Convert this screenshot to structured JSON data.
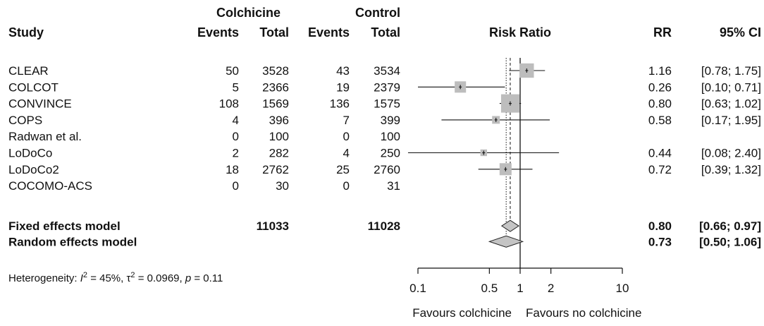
{
  "headers": {
    "group1": "Colchicine",
    "group2": "Control",
    "study": "Study",
    "events1": "Events",
    "total1": "Total",
    "events2": "Events",
    "total2": "Total",
    "plot": "Risk Ratio",
    "rr": "RR",
    "ci": "95% CI"
  },
  "chart_data": {
    "type": "forest",
    "scale": "log",
    "xlim": [
      0.1,
      10
    ],
    "ticks": [
      {
        "value": 0.1,
        "label": "0.1"
      },
      {
        "value": 0.5,
        "label": "0.5"
      },
      {
        "value": 1,
        "label": "1"
      },
      {
        "value": 2,
        "label": "2"
      },
      {
        "value": 10,
        "label": "10"
      }
    ],
    "xlabel_left": "Favours colchicine",
    "xlabel_right": "Favours no colchicine",
    "reference_line": 1,
    "fixed_line": 0.8,
    "random_line": 0.73,
    "studies": [
      {
        "name": "CLEAR",
        "e1": "50",
        "t1": "3528",
        "e2": "43",
        "t2": "3534",
        "rr": 1.16,
        "lo": 0.78,
        "hi": 1.75,
        "rr_text": "1.16",
        "ci_text": "[0.78; 1.75]",
        "weight": 0.55
      },
      {
        "name": "COLCOT",
        "e1": "5",
        "t1": "2366",
        "e2": "19",
        "t2": "2379",
        "rr": 0.26,
        "lo": 0.1,
        "hi": 0.71,
        "rr_text": "0.26",
        "ci_text": "[0.10; 0.71]",
        "weight": 0.3
      },
      {
        "name": "CONVINCE",
        "e1": "108",
        "t1": "1569",
        "e2": "136",
        "t2": "1575",
        "rr": 0.8,
        "lo": 0.63,
        "hi": 1.02,
        "rr_text": "0.80",
        "ci_text": "[0.63; 1.02]",
        "weight": 1.0
      },
      {
        "name": "COPS",
        "e1": "4",
        "t1": "396",
        "e2": "7",
        "t2": "399",
        "rr": 0.58,
        "lo": 0.17,
        "hi": 1.95,
        "rr_text": "0.58",
        "ci_text": "[0.17; 1.95]",
        "weight": 0.1
      },
      {
        "name": "Radwan et al.",
        "e1": "0",
        "t1": "100",
        "e2": "0",
        "t2": "100",
        "rr": null,
        "lo": null,
        "hi": null,
        "rr_text": "",
        "ci_text": "",
        "weight": 0
      },
      {
        "name": "LoDoCo",
        "e1": "2",
        "t1": "282",
        "e2": "4",
        "t2": "250",
        "rr": 0.44,
        "lo": 0.08,
        "hi": 2.4,
        "rr_text": "0.44",
        "ci_text": "[0.08; 2.40]",
        "weight": 0.06
      },
      {
        "name": "LoDoCo2",
        "e1": "18",
        "t1": "2762",
        "e2": "25",
        "t2": "2760",
        "rr": 0.72,
        "lo": 0.39,
        "hi": 1.32,
        "rr_text": "0.72",
        "ci_text": "[0.39; 1.32]",
        "weight": 0.35
      },
      {
        "name": "COCOMO-ACS",
        "e1": "0",
        "t1": "30",
        "e2": "0",
        "t2": "31",
        "rr": null,
        "lo": null,
        "hi": null,
        "rr_text": "",
        "ci_text": "",
        "weight": 0
      }
    ],
    "pooled": [
      {
        "name": "Fixed effects model",
        "t1": "11033",
        "t2": "11028",
        "rr": 0.8,
        "lo": 0.66,
        "hi": 0.97,
        "rr_text": "0.80",
        "ci_text": "[0.66; 0.97]"
      },
      {
        "name": "Random effects model",
        "t1": "",
        "t2": "",
        "rr": 0.73,
        "lo": 0.5,
        "hi": 1.06,
        "rr_text": "0.73",
        "ci_text": "[0.50; 1.06]"
      }
    ],
    "heterogeneity": {
      "prefix": "Heterogeneity: ",
      "i2_symbol": "I",
      "i2_value": " = 45%, ",
      "tau2_symbol": "τ",
      "tau2_value": " = 0.0969, ",
      "p_symbol": "p",
      "p_value": " = 0.11"
    }
  }
}
